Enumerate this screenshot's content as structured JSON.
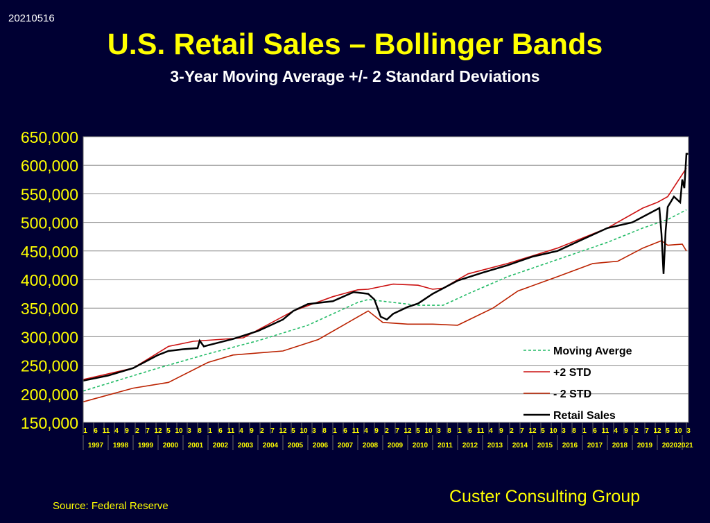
{
  "date_stamp": "20210516",
  "title": "U.S. Retail Sales – Bollinger Bands",
  "subtitle": "3-Year Moving Average +/- 2 Standard Deviations",
  "source": "Source: Federal Reserve",
  "brand": "Custer Consulting Group",
  "chart_data": {
    "type": "line",
    "ylim": [
      150000,
      650000
    ],
    "yticks": [
      "150,000",
      "200,000",
      "250,000",
      "300,000",
      "350,000",
      "400,000",
      "450,000",
      "500,000",
      "550,000",
      "600,000",
      "650,000"
    ],
    "x_range": [
      "1997-01",
      "2021-04"
    ],
    "month_tick_labels_every_5_months_from": "1997-01",
    "year_labels": [
      "1997",
      "1998",
      "1999",
      "2000",
      "2001",
      "2002",
      "2003",
      "2004",
      "2005",
      "2006",
      "2007",
      "2008",
      "2009",
      "2010",
      "2011",
      "2012",
      "2013",
      "2014",
      "2015",
      "2016",
      "2017",
      "2018",
      "2019",
      "2020",
      "2021"
    ],
    "grid": true,
    "legend_position": "bottom-right",
    "colors": {
      "Moving Averge": "#22bb66",
      "+2 STD": "#cc1111",
      "- 2 STD": "#bb2200",
      "Retail Sales": "#000000"
    },
    "series": [
      {
        "name": "Moving Averge",
        "style": "dashed",
        "points": [
          [
            "1997-01",
            205000
          ],
          [
            "2000-01",
            245000
          ],
          [
            "2002-01",
            270000
          ],
          [
            "2004-01",
            293000
          ],
          [
            "2006-01",
            320000
          ],
          [
            "2008-01",
            360000
          ],
          [
            "2008-06",
            365000
          ],
          [
            "2009-06",
            360000
          ],
          [
            "2010-06",
            355000
          ],
          [
            "2011-06",
            355000
          ],
          [
            "2012-06",
            375000
          ],
          [
            "2014-01",
            405000
          ],
          [
            "2016-01",
            435000
          ],
          [
            "2018-01",
            465000
          ],
          [
            "2019-06",
            490000
          ],
          [
            "2020-06",
            505000
          ],
          [
            "2021-03",
            522000
          ]
        ]
      },
      {
        "name": "+2 STD",
        "style": "solid",
        "points": [
          [
            "1997-01",
            225000
          ],
          [
            "1999-01",
            245000
          ],
          [
            "2000-06",
            283000
          ],
          [
            "2001-06",
            292000
          ],
          [
            "2003-06",
            298000
          ],
          [
            "2005-06",
            345000
          ],
          [
            "2007-01",
            370000
          ],
          [
            "2008-01",
            382000
          ],
          [
            "2008-06",
            383000
          ],
          [
            "2009-06",
            392000
          ],
          [
            "2010-06",
            390000
          ],
          [
            "2011-01",
            383000
          ],
          [
            "2011-06",
            385000
          ],
          [
            "2012-06",
            410000
          ],
          [
            "2014-01",
            428000
          ],
          [
            "2016-01",
            455000
          ],
          [
            "2018-01",
            490000
          ],
          [
            "2019-06",
            525000
          ],
          [
            "2020-01",
            535000
          ],
          [
            "2020-06",
            545000
          ],
          [
            "2021-03",
            595000
          ]
        ]
      },
      {
        "name": "- 2 STD",
        "style": "solid",
        "points": [
          [
            "1997-01",
            186000
          ],
          [
            "1999-01",
            210000
          ],
          [
            "2000-06",
            220000
          ],
          [
            "2002-01",
            255000
          ],
          [
            "2003-01",
            268000
          ],
          [
            "2005-01",
            275000
          ],
          [
            "2006-06",
            295000
          ],
          [
            "2007-06",
            320000
          ],
          [
            "2008-06",
            345000
          ],
          [
            "2009-01",
            325000
          ],
          [
            "2010-01",
            322000
          ],
          [
            "2011-01",
            322000
          ],
          [
            "2012-01",
            320000
          ],
          [
            "2013-06",
            350000
          ],
          [
            "2014-06",
            380000
          ],
          [
            "2016-01",
            405000
          ],
          [
            "2017-06",
            428000
          ],
          [
            "2018-06",
            432000
          ],
          [
            "2019-06",
            455000
          ],
          [
            "2020-03",
            468000
          ],
          [
            "2020-06",
            460000
          ],
          [
            "2021-01",
            462000
          ],
          [
            "2021-03",
            450000
          ]
        ]
      },
      {
        "name": "Retail Sales",
        "style": "solid",
        "points": [
          [
            "1997-01",
            223000
          ],
          [
            "1998-01",
            232000
          ],
          [
            "1999-01",
            245000
          ],
          [
            "2000-01",
            268000
          ],
          [
            "2000-06",
            275000
          ],
          [
            "2001-01",
            278000
          ],
          [
            "2001-08",
            280000
          ],
          [
            "2001-09",
            293000
          ],
          [
            "2001-11",
            283000
          ],
          [
            "2002-01",
            285000
          ],
          [
            "2003-01",
            296000
          ],
          [
            "2004-01",
            310000
          ],
          [
            "2005-01",
            330000
          ],
          [
            "2005-06",
            345000
          ],
          [
            "2006-01",
            357000
          ],
          [
            "2007-01",
            362000
          ],
          [
            "2007-11",
            378000
          ],
          [
            "2008-06",
            375000
          ],
          [
            "2008-09",
            365000
          ],
          [
            "2008-12",
            335000
          ],
          [
            "2009-03",
            330000
          ],
          [
            "2009-06",
            340000
          ],
          [
            "2010-01",
            352000
          ],
          [
            "2010-06",
            358000
          ],
          [
            "2011-01",
            375000
          ],
          [
            "2012-01",
            398000
          ],
          [
            "2013-01",
            412000
          ],
          [
            "2014-01",
            425000
          ],
          [
            "2015-01",
            440000
          ],
          [
            "2016-01",
            450000
          ],
          [
            "2017-01",
            470000
          ],
          [
            "2018-01",
            490000
          ],
          [
            "2019-01",
            500000
          ],
          [
            "2020-02",
            525000
          ],
          [
            "2020-03",
            480000
          ],
          [
            "2020-04",
            410000
          ],
          [
            "2020-05",
            485000
          ],
          [
            "2020-06",
            527000
          ],
          [
            "2020-09",
            545000
          ],
          [
            "2020-12",
            535000
          ],
          [
            "2021-01",
            575000
          ],
          [
            "2021-02",
            560000
          ],
          [
            "2021-03",
            620000
          ],
          [
            "2021-04",
            620000
          ]
        ]
      }
    ]
  }
}
